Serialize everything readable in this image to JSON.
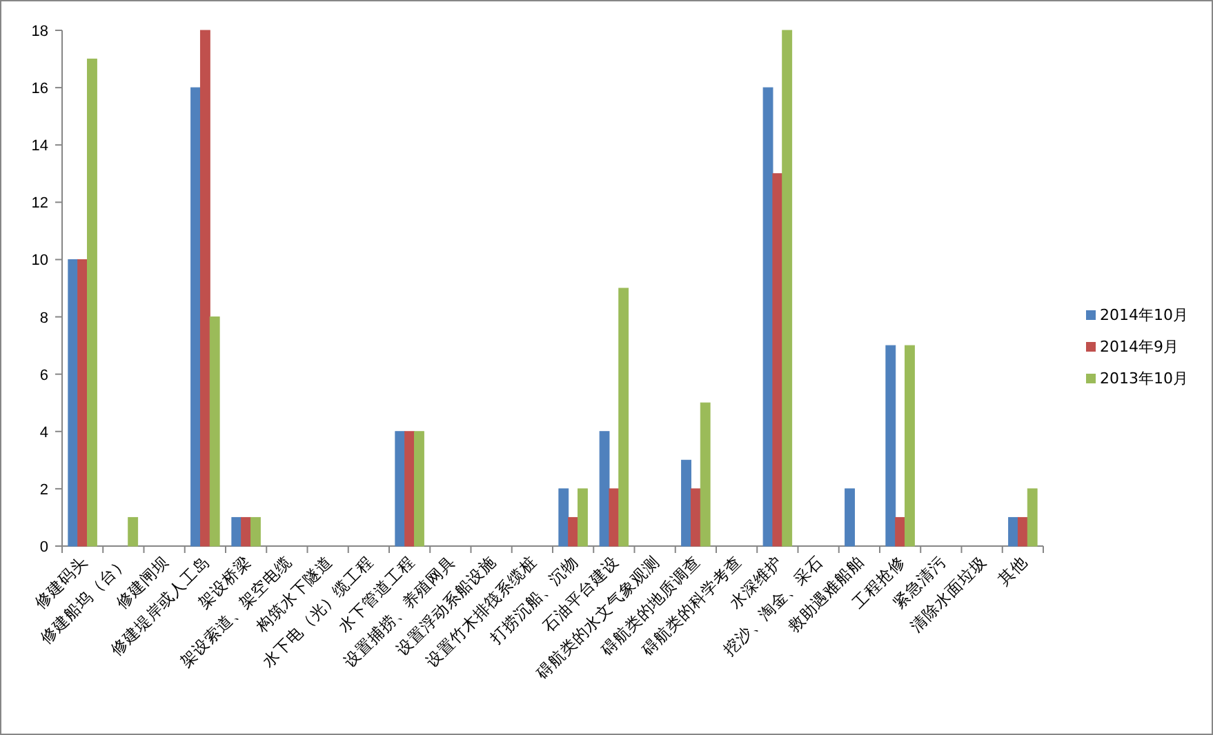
{
  "chart_data": {
    "type": "bar",
    "categories": [
      "修建码头",
      "修建船坞（台）",
      "修建闸坝",
      "修建堤岸或人工岛",
      "架设桥梁",
      "架设索道、架空电缆",
      "构筑水下隧道",
      "水下电（光）缆工程",
      "水下管道工程",
      "设置捕捞、养殖网具",
      "设置浮动系船设施",
      "设置竹木排筏系缆桩",
      "打捞沉船、沉物",
      "石油平台建设",
      "碍航类的水文气象观测",
      "碍航类的地质调查",
      "碍航类的科学考查",
      "水深维护",
      "挖沙、淘金、采石",
      "救助遇难船舶",
      "工程抢修",
      "紧急清污",
      "清除水面垃圾",
      "其他"
    ],
    "series": [
      {
        "name": "2014年10月",
        "color": "#4f81bd",
        "values": [
          10,
          0,
          0,
          16,
          1,
          0,
          0,
          0,
          4,
          0,
          0,
          0,
          2,
          4,
          0,
          3,
          0,
          16,
          0,
          2,
          7,
          0,
          0,
          1
        ]
      },
      {
        "name": "2014年9月",
        "color": "#c0504d",
        "values": [
          10,
          0,
          0,
          18,
          1,
          0,
          0,
          0,
          4,
          0,
          0,
          0,
          1,
          2,
          0,
          2,
          0,
          13,
          0,
          0,
          1,
          0,
          0,
          1
        ]
      },
      {
        "name": "2013年10月",
        "color": "#9bbb59",
        "values": [
          17,
          1,
          0,
          8,
          1,
          0,
          0,
          0,
          4,
          0,
          0,
          0,
          2,
          9,
          0,
          5,
          0,
          18,
          0,
          0,
          7,
          0,
          0,
          2
        ]
      }
    ],
    "ylim": [
      0,
      18
    ],
    "yticks": [
      0,
      2,
      4,
      6,
      8,
      10,
      12,
      14,
      16,
      18
    ],
    "grid": false,
    "legend": "right"
  }
}
